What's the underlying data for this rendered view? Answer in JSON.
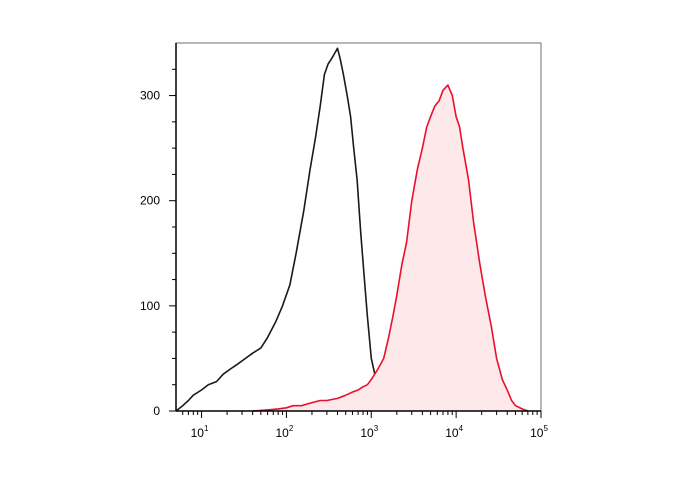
{
  "chart_data": {
    "type": "area",
    "title": "",
    "xlabel": "",
    "ylabel": "",
    "x_scale": "log",
    "xlim": [
      5,
      100000
    ],
    "ylim": [
      0,
      350
    ],
    "grid": false,
    "legend": "none",
    "x_ticks": [
      {
        "base": "10",
        "exp": "1",
        "value": 10
      },
      {
        "base": "10",
        "exp": "2",
        "value": 100
      },
      {
        "base": "10",
        "exp": "3",
        "value": 1000
      },
      {
        "base": "10",
        "exp": "4",
        "value": 10000
      },
      {
        "base": "10",
        "exp": "5",
        "value": 100000
      }
    ],
    "y_ticks": [
      {
        "label": "0",
        "value": 0
      },
      {
        "label": "100",
        "value": 100
      },
      {
        "label": "200",
        "value": 200
      },
      {
        "label": "300",
        "value": 300
      }
    ],
    "series": [
      {
        "color": "#1a1a1a",
        "fill": "none",
        "x": [
          5,
          6,
          7,
          8,
          10,
          12,
          15,
          18,
          22,
          27,
          33,
          40,
          50,
          60,
          75,
          90,
          110,
          130,
          160,
          190,
          220,
          250,
          280,
          310,
          340,
          370,
          400,
          430,
          470,
          520,
          570,
          620,
          680,
          750,
          820,
          900,
          1000,
          1100,
          1200,
          1400,
          1600,
          2000,
          2500,
          3000
        ],
        "y": [
          0,
          5,
          10,
          15,
          20,
          25,
          28,
          35,
          40,
          45,
          50,
          55,
          60,
          70,
          85,
          100,
          120,
          150,
          190,
          230,
          260,
          290,
          320,
          330,
          335,
          340,
          345,
          335,
          320,
          300,
          280,
          250,
          220,
          170,
          130,
          90,
          50,
          35,
          20,
          10,
          5,
          3,
          2,
          0
        ]
      },
      {
        "color": "#e8102e",
        "fill": "#fde8ea",
        "x": [
          40,
          60,
          80,
          100,
          120,
          150,
          200,
          250,
          300,
          400,
          500,
          600,
          700,
          800,
          900,
          1000,
          1200,
          1400,
          1600,
          1800,
          2000,
          2300,
          2600,
          3000,
          3500,
          4000,
          4500,
          5000,
          5600,
          6300,
          7000,
          8000,
          9000,
          10000,
          11000,
          12000,
          14000,
          16000,
          19000,
          22000,
          26000,
          30000,
          35000,
          40000,
          45000,
          50000,
          60000,
          70000
        ],
        "y": [
          0,
          1,
          2,
          3,
          5,
          5,
          8,
          10,
          10,
          12,
          15,
          18,
          20,
          23,
          25,
          30,
          40,
          50,
          70,
          90,
          110,
          140,
          160,
          200,
          230,
          250,
          270,
          280,
          290,
          295,
          305,
          310,
          300,
          280,
          270,
          250,
          220,
          180,
          140,
          110,
          80,
          50,
          30,
          20,
          10,
          5,
          2,
          0
        ]
      }
    ]
  }
}
